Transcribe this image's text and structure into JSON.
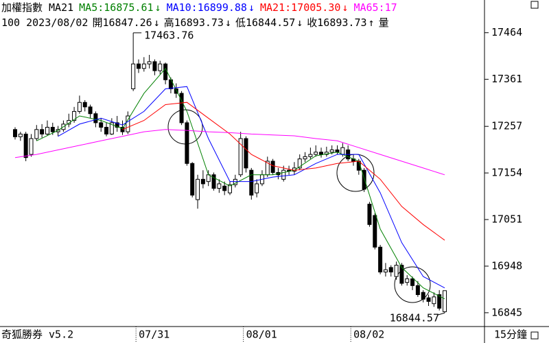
{
  "chart_data": {
    "type": "candlestick",
    "title": "加權指數 MA21",
    "ma_legend": [
      {
        "text": "MA5:16875.61",
        "arrow": "↓",
        "color": "#008000"
      },
      {
        "text": "MA10:16899.88",
        "arrow": "↓",
        "color": "#0000ff"
      },
      {
        "text": "MA21:17005.30",
        "arrow": "↓",
        "color": "#ff0000"
      },
      {
        "text": "MA65:17",
        "color": "#ff00ff"
      }
    ],
    "info_line": [
      {
        "text": "100 2023/08/02"
      },
      {
        "text": "開16847.26",
        "arrow": "↓"
      },
      {
        "text": "高16893.73",
        "arrow": "↓"
      },
      {
        "text": "低16844.57",
        "arrow": "↓"
      },
      {
        "text": "收16893.73",
        "arrow": "↑"
      },
      {
        "text": "量"
      }
    ],
    "footer_left": "奇狐勝券 v5.2",
    "footer_right": "15分鐘",
    "categories": [
      null,
      null,
      null,
      null,
      null,
      null,
      null,
      null,
      null,
      null,
      null,
      null,
      null,
      null,
      null,
      null,
      null,
      null,
      null,
      null,
      null,
      null,
      "07/31",
      null,
      null,
      null,
      null,
      null,
      null,
      null,
      null,
      null,
      null,
      null,
      null,
      null,
      null,
      null,
      null,
      null,
      null,
      null,
      "08/01",
      null,
      null,
      null,
      null,
      null,
      null,
      null,
      null,
      null,
      null,
      null,
      null,
      null,
      null,
      null,
      null,
      null,
      null,
      null,
      "08/02",
      null,
      null,
      null,
      null,
      null,
      null,
      null,
      null,
      null,
      null,
      null,
      null,
      null,
      null,
      null,
      null,
      null,
      null
    ],
    "ohlc": [
      [
        17250,
        17255,
        17228,
        17234
      ],
      [
        17234,
        17245,
        17225,
        17240
      ],
      [
        17240,
        17245,
        17180,
        17188
      ],
      [
        17195,
        17240,
        17190,
        17230
      ],
      [
        17230,
        17260,
        17225,
        17250
      ],
      [
        17250,
        17262,
        17232,
        17240
      ],
      [
        17240,
        17270,
        17236,
        17255
      ],
      [
        17255,
        17265,
        17238,
        17245
      ],
      [
        17245,
        17258,
        17235,
        17250
      ],
      [
        17250,
        17270,
        17245,
        17262
      ],
      [
        17262,
        17285,
        17255,
        17270
      ],
      [
        17270,
        17300,
        17265,
        17290
      ],
      [
        17290,
        17325,
        17285,
        17310
      ],
      [
        17310,
        17315,
        17290,
        17300
      ],
      [
        17300,
        17305,
        17275,
        17285
      ],
      [
        17285,
        17290,
        17255,
        17265
      ],
      [
        17265,
        17275,
        17245,
        17255
      ],
      [
        17255,
        17265,
        17235,
        17240
      ],
      [
        17240,
        17275,
        17238,
        17265
      ],
      [
        17265,
        17280,
        17245,
        17255
      ],
      [
        17255,
        17270,
        17238,
        17245
      ],
      [
        17245,
        17290,
        17240,
        17280
      ],
      [
        17340,
        17463.76,
        17335,
        17395
      ],
      [
        17395,
        17405,
        17375,
        17385
      ],
      [
        17385,
        17410,
        17378,
        17395
      ],
      [
        17395,
        17415,
        17385,
        17400
      ],
      [
        17400,
        17405,
        17370,
        17380
      ],
      [
        17380,
        17402,
        17372,
        17395
      ],
      [
        17395,
        17398,
        17350,
        17360
      ],
      [
        17360,
        17365,
        17330,
        17340
      ],
      [
        17340,
        17352,
        17320,
        17330
      ],
      [
        17330,
        17335,
        17260,
        17265
      ],
      [
        17265,
        17270,
        17170,
        17175
      ],
      [
        17175,
        17178,
        17100,
        17105
      ],
      [
        17095,
        17150,
        17075,
        17140
      ],
      [
        17140,
        17160,
        17120,
        17130
      ],
      [
        17135,
        17160,
        17125,
        17150
      ],
      [
        17150,
        17155,
        17115,
        17120
      ],
      [
        17120,
        17140,
        17110,
        17130
      ],
      [
        17125,
        17135,
        17105,
        17115
      ],
      [
        17110,
        17135,
        17105,
        17128
      ],
      [
        17128,
        17150,
        17122,
        17140
      ],
      [
        17150,
        17245,
        17145,
        17230
      ],
      [
        17230,
        17235,
        17155,
        17165
      ],
      [
        17160,
        17165,
        17095,
        17105
      ],
      [
        17110,
        17140,
        17100,
        17130
      ],
      [
        17130,
        17160,
        17125,
        17150
      ],
      [
        17150,
        17190,
        17145,
        17180
      ],
      [
        17180,
        17185,
        17150,
        17155
      ],
      [
        17155,
        17165,
        17140,
        17150
      ],
      [
        17140,
        17170,
        17135,
        17160
      ],
      [
        17160,
        17170,
        17150,
        17158
      ],
      [
        17158,
        17178,
        17150,
        17165
      ],
      [
        17165,
        17195,
        17160,
        17185
      ],
      [
        17185,
        17200,
        17178,
        17190
      ],
      [
        17190,
        17210,
        17185,
        17195
      ],
      [
        17195,
        17215,
        17190,
        17200
      ],
      [
        17200,
        17210,
        17188,
        17195
      ],
      [
        17195,
        17212,
        17190,
        17200
      ],
      [
        17200,
        17215,
        17195,
        17205
      ],
      [
        17205,
        17215,
        17195,
        17200
      ],
      [
        17195,
        17220,
        17190,
        17210
      ],
      [
        17205,
        17215,
        17180,
        17185
      ],
      [
        17185,
        17195,
        17170,
        17180
      ],
      [
        17180,
        17185,
        17150,
        17160
      ],
      [
        17160,
        17165,
        17112,
        17118
      ],
      [
        17085,
        17090,
        17035,
        17040
      ],
      [
        17060,
        17065,
        16985,
        16990
      ],
      [
        16990,
        16995,
        16930,
        16935
      ],
      [
        16935,
        16955,
        16925,
        16940
      ],
      [
        16945,
        16950,
        16925,
        16935
      ],
      [
        16925,
        16958,
        16918,
        16950
      ],
      [
        16950,
        16955,
        16905,
        16910
      ],
      [
        16912,
        16928,
        16905,
        16920
      ],
      [
        16920,
        16925,
        16895,
        16905
      ],
      [
        16905,
        16915,
        16880,
        16885
      ],
      [
        16890,
        16895,
        16868,
        16875
      ],
      [
        16878,
        16885,
        16860,
        16870
      ],
      [
        16865,
        16890,
        16858,
        16880
      ],
      [
        16885,
        16895,
        16850,
        16855
      ],
      [
        16847.26,
        16893.73,
        16844.57,
        16893.73
      ]
    ],
    "series": [
      {
        "name": "MA5",
        "color": "#008000",
        "x": [
          4,
          8,
          12,
          16,
          20,
          24,
          28,
          32,
          36,
          40,
          44,
          48,
          52,
          56,
          60,
          64,
          68,
          72,
          76,
          80
        ],
        "values": [
          17225,
          17248,
          17280,
          17270,
          17252,
          17330,
          17385,
          17290,
          17150,
          17125,
          17150,
          17150,
          17160,
          17192,
          17200,
          17180,
          17030,
          16945,
          16900,
          16875.61
        ]
      },
      {
        "name": "MA10",
        "color": "#0000ff",
        "x": [
          8,
          12,
          16,
          20,
          24,
          28,
          32,
          36,
          40,
          44,
          48,
          52,
          56,
          60,
          64,
          68,
          72,
          76,
          80
        ],
        "values": [
          17235,
          17262,
          17275,
          17260,
          17290,
          17340,
          17345,
          17230,
          17135,
          17135,
          17145,
          17150,
          17175,
          17195,
          17195,
          17110,
          17000,
          16925,
          16899.88
        ]
      },
      {
        "name": "MA21",
        "color": "#ff0000",
        "x": [
          20,
          24,
          28,
          32,
          36,
          40,
          44,
          48,
          52,
          56,
          60,
          64,
          68,
          72,
          76,
          80
        ],
        "values": [
          17250,
          17270,
          17305,
          17310,
          17275,
          17240,
          17195,
          17170,
          17160,
          17165,
          17175,
          17180,
          17140,
          17080,
          17040,
          17005.3
        ]
      },
      {
        "name": "MA65",
        "color": "#ff00ff",
        "x": [
          0,
          4,
          8,
          12,
          16,
          20,
          24,
          28,
          32,
          36,
          40,
          44,
          48,
          52,
          56,
          60,
          64,
          68,
          72,
          76,
          80
        ],
        "values": [
          17188,
          17195,
          17205,
          17215,
          17225,
          17235,
          17245,
          17250,
          17248,
          17245,
          17243,
          17240,
          17238,
          17236,
          17230,
          17225,
          17210,
          17195,
          17180,
          17165,
          17150
        ]
      }
    ],
    "annotations": [
      {
        "label": "17463.76",
        "value": 17463.76,
        "index": 22
      },
      {
        "label": "16844.57",
        "value": 16844.57,
        "index": 80
      }
    ],
    "ylim": [
      16816,
      17506
    ],
    "yticks": [
      17464,
      17361,
      17257,
      17154,
      17051,
      16948,
      16845
    ]
  }
}
